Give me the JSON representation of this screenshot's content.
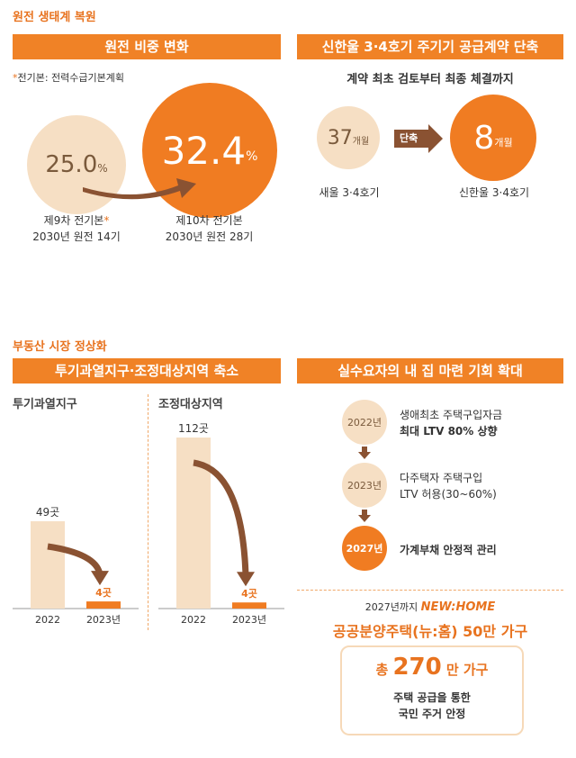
{
  "sections": {
    "nuclear_title": "원전 생태계 복원",
    "realestate_title": "부동산 시장 정상화"
  },
  "nuclear_share": {
    "banner": "원전 비중 변화",
    "footnote_star": "*",
    "footnote": "전기본: 전력수급기본계획",
    "old": {
      "value": "25.0",
      "unit": "%",
      "label1": "제9차 전기본",
      "label1_star": "*",
      "label2": "2030년 원전 14기"
    },
    "new": {
      "value": "32.4",
      "unit": "%",
      "label1": "제10차 전기본",
      "label2": "2030년 원전 28기"
    }
  },
  "contract": {
    "banner": "신한울 3·4호기 주기기 공급계약 단축",
    "subtitle": "계약 최초 검토부터 최종 체결까지",
    "old": {
      "value": "37",
      "unit": "개월",
      "label": "새울 3·4호기"
    },
    "arrow_label": "단축",
    "new": {
      "value": "8",
      "unit": "개월",
      "label": "신한울 3·4호기"
    }
  },
  "zones": {
    "banner": "투기과열지구·조정대상지역 축소",
    "colors": {
      "bar_2022": "#f6dfc4",
      "bar_2023": "#f07c22",
      "value_2023": "#e8731f"
    }
  },
  "chart_data": [
    {
      "type": "bar",
      "title": "투기과열지구",
      "categories": [
        "2022",
        "2023년"
      ],
      "values": [
        49,
        4
      ],
      "value_labels": [
        "49곳",
        "4곳"
      ]
    },
    {
      "type": "bar",
      "title": "조정대상지역",
      "categories": [
        "2022",
        "2023년"
      ],
      "values": [
        112,
        4
      ],
      "value_labels": [
        "112곳",
        "4곳"
      ]
    }
  ],
  "home": {
    "banner": "실수요자의 내 집 마련 기회 확대",
    "steps": [
      {
        "year": "2022년",
        "line1": "생애최초 주택구입자금",
        "line2": "최대 LTV 80% 상향"
      },
      {
        "year": "2023년",
        "line1": "다주택자 주택구입",
        "line2": "LTV 허용(30~60%)"
      },
      {
        "year": "2027년",
        "line1": "가계부채 안정적 관리",
        "line2": ""
      }
    ],
    "newhome_prefix": "2027년까지",
    "newhome_logo": "NEW:HOME",
    "newhome_title": "공공분양주택(뉴:홈) 50만 가구",
    "total_prefix": "총",
    "total_value": "270",
    "total_unit": "만 가구",
    "total_line1": "주택 공급을 통한",
    "total_line2": "국민 주거 안정"
  }
}
